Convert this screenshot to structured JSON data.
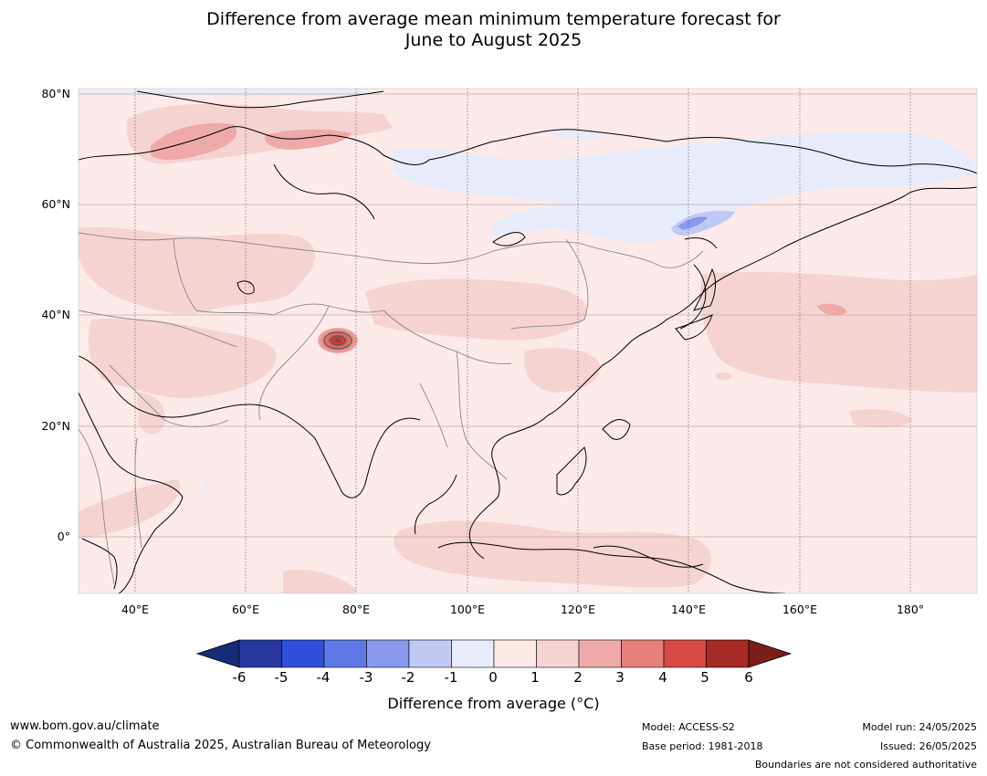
{
  "title": {
    "line1": "Difference from average mean minimum temperature forecast for",
    "line2": "June to August 2025"
  },
  "map": {
    "lat_labels": [
      "80°N",
      "60°N",
      "40°N",
      "20°N",
      "0°"
    ],
    "lon_labels": [
      "40°E",
      "60°E",
      "80°E",
      "100°E",
      "120°E",
      "140°E",
      "160°E",
      "180°"
    ],
    "background_color": "#fbeae9",
    "region": "Asia"
  },
  "colorbar": {
    "ticks": [
      "-6",
      "-5",
      "-4",
      "-3",
      "-2",
      "-1",
      "0",
      "1",
      "2",
      "3",
      "4",
      "5",
      "6"
    ],
    "colors": [
      "#28389f",
      "#3050dc",
      "#5e78e6",
      "#8898ea",
      "#c0c8f4",
      "#e8ebfa",
      "#fce9e8",
      "#f5d3d2",
      "#eeaaa8",
      "#e47f7b",
      "#d74a43",
      "#a82a24"
    ],
    "under_color": "#172b78",
    "over_color": "#7b1d1a",
    "label": "Difference from average ($^\\circ$C)",
    "label_display": "Difference from average (°C)"
  },
  "footer": {
    "website": "www.bom.gov.au/climate",
    "copyright": "© Commonwealth of Australia 2025, Australian Bureau of Meteorology",
    "model": "Model: ACCESS-S2",
    "base_period": "Base period: 1981-2018",
    "model_run": "Model run: 24/05/2025",
    "issued": "Issued: 26/05/2025",
    "disclaimer": "Boundaries are not considered authoritative"
  }
}
